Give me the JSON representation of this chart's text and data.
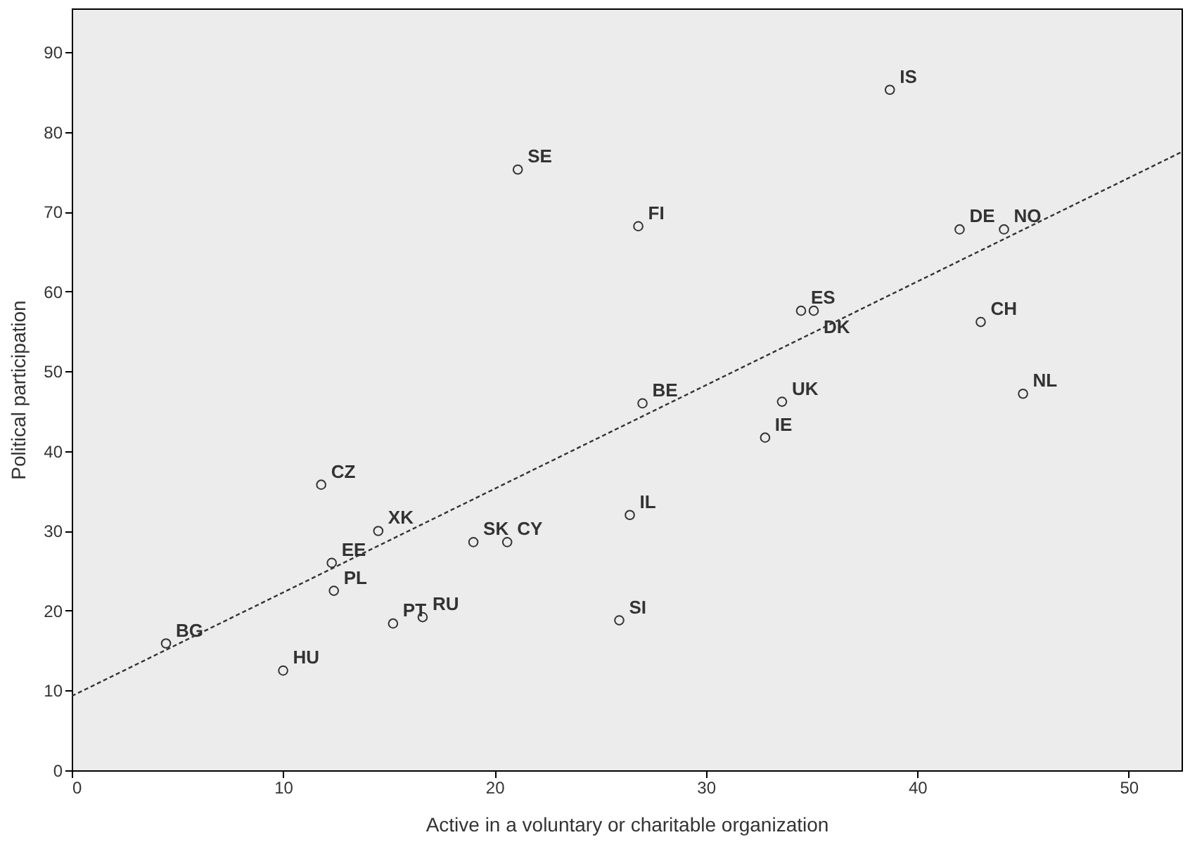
{
  "chart_data": {
    "type": "scatter",
    "xlabel": "Active in a voluntary or charitable organization",
    "ylabel": "Political participation",
    "xlim": [
      0,
      52.5
    ],
    "ylim": [
      0,
      95.5
    ],
    "xticks": [
      0,
      10,
      20,
      30,
      40,
      50
    ],
    "yticks": [
      0,
      10,
      20,
      30,
      40,
      50,
      60,
      70,
      80,
      90
    ],
    "grid": false,
    "series": [
      {
        "marker": "circle",
        "color": "#333333",
        "x": [
          4.46,
          10,
          12.4,
          12.3,
          14.5,
          11.8,
          15.2,
          16.6,
          19,
          20.6,
          25.9,
          26.4,
          27,
          21.1,
          26.8,
          32.8,
          33.6,
          34.5,
          35.1,
          38.7,
          42,
          44.1,
          43,
          45
        ],
        "values": [
          15.9,
          12.5,
          22.5,
          26,
          30,
          35.8,
          18.4,
          19.2,
          28.6,
          28.6,
          18.8,
          32,
          46,
          75.3,
          68.2,
          41.7,
          46.2,
          57.6,
          57.6,
          85.3,
          67.8,
          67.8,
          56.2,
          47.2
        ]
      },
      {
        "type": "line",
        "line_style": "dashed",
        "color": "#333333",
        "x": [
          0,
          52.5
        ],
        "values": [
          9.3,
          77.5
        ]
      }
    ],
    "annotations": [
      {
        "text": "BG",
        "x": 4.46,
        "y": 15.9
      },
      {
        "text": "HU",
        "x": 10,
        "y": 12.5
      },
      {
        "text": "PL",
        "x": 12.4,
        "y": 22.5
      },
      {
        "text": "EE",
        "x": 12.3,
        "y": 26
      },
      {
        "text": "XK",
        "x": 14.5,
        "y": 30
      },
      {
        "text": "CZ",
        "x": 11.8,
        "y": 35.8
      },
      {
        "text": "PT",
        "x": 15.2,
        "y": 18.4
      },
      {
        "text": "RU",
        "x": 16.6,
        "y": 19.2
      },
      {
        "text": "SK",
        "x": 19,
        "y": 28.6
      },
      {
        "text": "CY",
        "x": 20.6,
        "y": 28.6
      },
      {
        "text": "SI",
        "x": 25.9,
        "y": 18.8
      },
      {
        "text": "IL",
        "x": 26.4,
        "y": 32
      },
      {
        "text": "BE",
        "x": 27,
        "y": 46
      },
      {
        "text": "SE",
        "x": 21.1,
        "y": 75.3
      },
      {
        "text": "FI",
        "x": 26.8,
        "y": 68.2
      },
      {
        "text": "IE",
        "x": 32.8,
        "y": 41.7
      },
      {
        "text": "UK",
        "x": 33.6,
        "y": 46.2
      },
      {
        "text": "ES",
        "x": 34.5,
        "y": 57.6
      },
      {
        "text": "DK",
        "x": 35.1,
        "y": 57.6
      },
      {
        "text": "IS",
        "x": 38.7,
        "y": 85.3
      },
      {
        "text": "DE",
        "x": 42,
        "y": 67.8
      },
      {
        "text": "NO",
        "x": 44.1,
        "y": 67.8
      },
      {
        "text": "CH",
        "x": 43,
        "y": 56.2
      },
      {
        "text": "NL",
        "x": 45,
        "y": 47.2
      }
    ]
  }
}
